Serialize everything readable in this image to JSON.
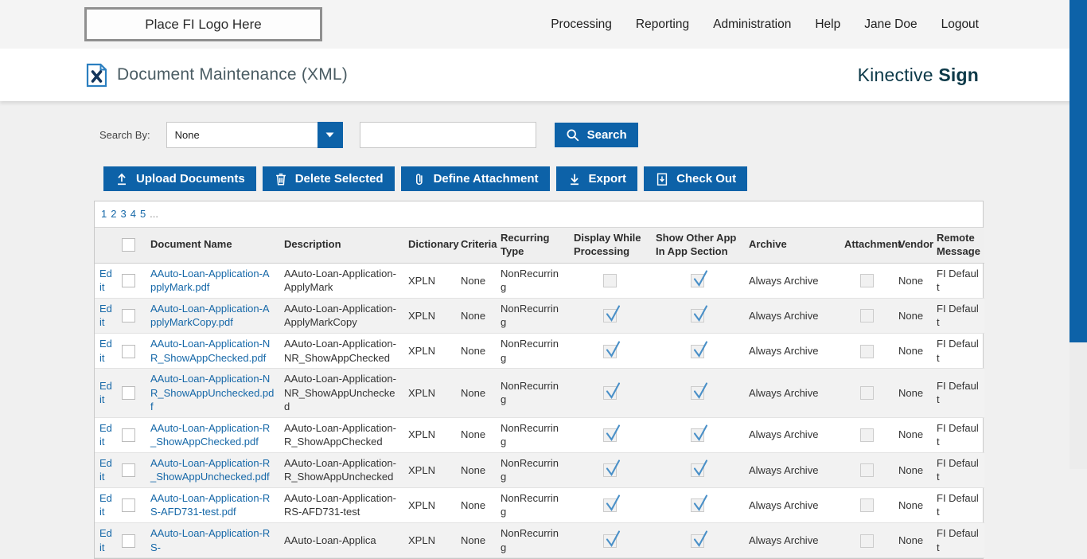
{
  "header": {
    "logo_placeholder": "Place FI Logo Here",
    "nav": [
      "Processing",
      "Reporting",
      "Administration",
      "Help",
      "Jane Doe",
      "Logout"
    ]
  },
  "title_bar": {
    "title": "Document Maintenance (XML)",
    "brand_regular": "Kinective",
    "brand_bold": "Sign"
  },
  "search": {
    "label": "Search By:",
    "dropdown_value": "None",
    "input_value": "",
    "button_label": "Search"
  },
  "toolbar": {
    "upload_label": "Upload Documents",
    "delete_label": "Delete Selected",
    "define_attachment_label": "Define Attachment",
    "export_label": "Export",
    "checkout_label": "Check Out"
  },
  "pagination": {
    "pages": [
      "1",
      "2",
      "3",
      "4",
      "5"
    ],
    "ellipsis": "..."
  },
  "table": {
    "edit_label": "Edit",
    "columns": [
      "Document Name",
      "Description",
      "Dictionary",
      "Criteria",
      "Recurring Type",
      "Display While Processing",
      "Show Other App In App Section",
      "Archive",
      "Attachment",
      "Vendor",
      "Remote Message"
    ],
    "rows": [
      {
        "name": "AAuto-Loan-Application-ApplyMark.pdf",
        "description": "AAuto-Loan-Application-ApplyMark",
        "dictionary": "XPLN",
        "criteria": "None",
        "recurring": "NonRecurring",
        "display_while_processing": false,
        "show_other_app": true,
        "archive": "Always Archive",
        "attachment": false,
        "vendor": "None",
        "remote": "FI Default"
      },
      {
        "name": "AAuto-Loan-Application-ApplyMarkCopy.pdf",
        "description": "AAuto-Loan-Application-ApplyMarkCopy",
        "dictionary": "XPLN",
        "criteria": "None",
        "recurring": "NonRecurring",
        "display_while_processing": true,
        "show_other_app": true,
        "archive": "Always Archive",
        "attachment": false,
        "vendor": "None",
        "remote": "FI Default"
      },
      {
        "name": "AAuto-Loan-Application-NR_ShowAppChecked.pdf",
        "description": "AAuto-Loan-Application-NR_ShowAppChecked",
        "dictionary": "XPLN",
        "criteria": "None",
        "recurring": "NonRecurring",
        "display_while_processing": true,
        "show_other_app": true,
        "archive": "Always Archive",
        "attachment": false,
        "vendor": "None",
        "remote": "FI Default"
      },
      {
        "name": "AAuto-Loan-Application-NR_ShowAppUnchecked.pdf",
        "description": "AAuto-Loan-Application-NR_ShowAppUnchecked",
        "dictionary": "XPLN",
        "criteria": "None",
        "recurring": "NonRecurring",
        "display_while_processing": true,
        "show_other_app": true,
        "archive": "Always Archive",
        "attachment": false,
        "vendor": "None",
        "remote": "FI Default"
      },
      {
        "name": "AAuto-Loan-Application-R_ShowAppChecked.pdf",
        "description": "AAuto-Loan-Application-R_ShowAppChecked",
        "dictionary": "XPLN",
        "criteria": "None",
        "recurring": "NonRecurring",
        "display_while_processing": true,
        "show_other_app": true,
        "archive": "Always Archive",
        "attachment": false,
        "vendor": "None",
        "remote": "FI Default"
      },
      {
        "name": "AAuto-Loan-Application-R_ShowAppUnchecked.pdf",
        "description": "AAuto-Loan-Application-R_ShowAppUnchecked",
        "dictionary": "XPLN",
        "criteria": "None",
        "recurring": "NonRecurring",
        "display_while_processing": true,
        "show_other_app": true,
        "archive": "Always Archive",
        "attachment": false,
        "vendor": "None",
        "remote": "FI Default"
      },
      {
        "name": "AAuto-Loan-Application-RS-AFD731-test.pdf",
        "description": "AAuto-Loan-Application-RS-AFD731-test",
        "dictionary": "XPLN",
        "criteria": "None",
        "recurring": "NonRecurring",
        "display_while_processing": true,
        "show_other_app": true,
        "archive": "Always Archive",
        "attachment": false,
        "vendor": "None",
        "remote": "FI Default"
      },
      {
        "name": "AAuto-Loan-Application-RS-",
        "description": "AAuto-Loan-Applica",
        "dictionary": "XPLN",
        "criteria": "None",
        "recurring": "NonRecurring",
        "display_while_processing": true,
        "show_other_app": true,
        "archive": "Always Archive",
        "attachment": false,
        "vendor": "None",
        "remote": "FI Default"
      }
    ]
  },
  "colors": {
    "accent": "#0d62a8",
    "check": "#4a90c8",
    "link": "#1668a8",
    "brand": "#0c3948",
    "title": "#4a5c63"
  }
}
